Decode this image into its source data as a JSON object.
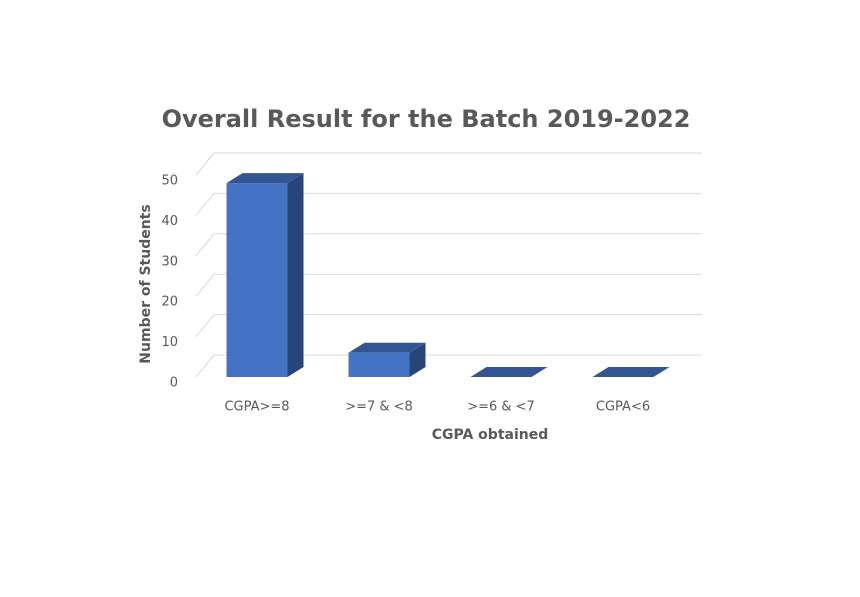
{
  "chart_data": {
    "type": "bar3d",
    "title": "Overall Result for the Batch 2019-2022",
    "x_label": "CGPA obtained",
    "y_label": "Number of Students",
    "categories": [
      "CGPA>=8",
      ">=7 & <8",
      ">=6 & <7",
      "CGPA<6"
    ],
    "values": [
      48,
      6,
      0,
      0
    ],
    "color": "#4472c4",
    "ylim": [
      0,
      50
    ],
    "yticks": [
      0,
      10,
      20,
      30,
      40,
      50
    ],
    "grid": true
  }
}
